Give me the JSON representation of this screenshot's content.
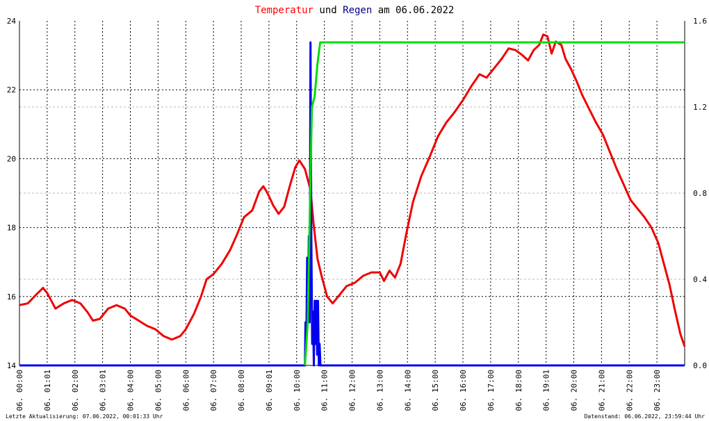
{
  "title": {
    "part1": "Temperatur",
    "part2": " und ",
    "part3": "Regen",
    "part4": " am 06.06.2022",
    "color_temp": "#ff0000",
    "color_rain": "#000080",
    "color_text": "#000000"
  },
  "footer": {
    "left": "Letzte Aktualisierung: 07.06.2022, 00:01:33 Uhr",
    "right": "Datenstand: 06.06.2022, 23:59:44 Uhr"
  },
  "chart_data": {
    "type": "line",
    "grid": true,
    "x_ticks": [
      "06. 00:00",
      "06. 01:01",
      "06. 02:00",
      "06. 03:01",
      "06. 04:00",
      "06. 05:00",
      "06. 06:00",
      "06. 07:00",
      "06. 08:00",
      "06. 09:01",
      "06. 10:00",
      "06. 11:00",
      "06. 12:00",
      "06. 13:00",
      "06. 14:00",
      "06. 15:00",
      "06. 16:00",
      "06. 17:00",
      "06. 18:00",
      "06. 19:01",
      "06. 20:00",
      "06. 21:00",
      "06. 22:00",
      "06. 23:00"
    ],
    "y_left": {
      "range": [
        14,
        24
      ],
      "ticks": [
        "14",
        "16",
        "18",
        "20",
        "22",
        "24"
      ]
    },
    "y_right": {
      "range": [
        0.0,
        1.6
      ],
      "ticks": [
        "0.0",
        "0.4",
        "0.8",
        "1.2",
        "1.6"
      ]
    },
    "series": [
      {
        "color": "#ee0000",
        "axis": "left",
        "points": [
          [
            0,
            15.75
          ],
          [
            0.3,
            15.8
          ],
          [
            0.6,
            16.05
          ],
          [
            0.85,
            16.25
          ],
          [
            1.0,
            16.1
          ],
          [
            1.3,
            15.65
          ],
          [
            1.6,
            15.8
          ],
          [
            1.9,
            15.9
          ],
          [
            2.2,
            15.8
          ],
          [
            2.45,
            15.55
          ],
          [
            2.65,
            15.3
          ],
          [
            2.9,
            15.35
          ],
          [
            3.2,
            15.65
          ],
          [
            3.5,
            15.75
          ],
          [
            3.8,
            15.65
          ],
          [
            4.0,
            15.45
          ],
          [
            4.3,
            15.3
          ],
          [
            4.6,
            15.15
          ],
          [
            4.9,
            15.05
          ],
          [
            5.2,
            14.85
          ],
          [
            5.5,
            14.75
          ],
          [
            5.8,
            14.85
          ],
          [
            6.0,
            15.05
          ],
          [
            6.3,
            15.5
          ],
          [
            6.55,
            16.0
          ],
          [
            6.75,
            16.5
          ],
          [
            7.0,
            16.65
          ],
          [
            7.3,
            16.95
          ],
          [
            7.6,
            17.35
          ],
          [
            7.85,
            17.8
          ],
          [
            8.1,
            18.3
          ],
          [
            8.4,
            18.5
          ],
          [
            8.65,
            19.05
          ],
          [
            8.8,
            19.2
          ],
          [
            8.95,
            19.0
          ],
          [
            9.15,
            18.65
          ],
          [
            9.35,
            18.4
          ],
          [
            9.55,
            18.6
          ],
          [
            9.75,
            19.2
          ],
          [
            9.95,
            19.75
          ],
          [
            10.1,
            19.95
          ],
          [
            10.3,
            19.7
          ],
          [
            10.5,
            19.1
          ],
          [
            10.6,
            18.2
          ],
          [
            10.75,
            17.1
          ],
          [
            10.9,
            16.6
          ],
          [
            11.1,
            16.0
          ],
          [
            11.3,
            15.8
          ],
          [
            11.55,
            16.05
          ],
          [
            11.8,
            16.3
          ],
          [
            12.1,
            16.4
          ],
          [
            12.4,
            16.6
          ],
          [
            12.7,
            16.7
          ],
          [
            13.0,
            16.7
          ],
          [
            13.15,
            16.45
          ],
          [
            13.35,
            16.75
          ],
          [
            13.55,
            16.55
          ],
          [
            13.75,
            16.95
          ],
          [
            13.95,
            17.8
          ],
          [
            14.2,
            18.75
          ],
          [
            14.5,
            19.5
          ],
          [
            14.8,
            20.05
          ],
          [
            15.1,
            20.65
          ],
          [
            15.4,
            21.05
          ],
          [
            15.7,
            21.35
          ],
          [
            16.0,
            21.7
          ],
          [
            16.3,
            22.1
          ],
          [
            16.6,
            22.45
          ],
          [
            16.85,
            22.35
          ],
          [
            17.1,
            22.6
          ],
          [
            17.4,
            22.9
          ],
          [
            17.65,
            23.2
          ],
          [
            17.9,
            23.15
          ],
          [
            18.15,
            23.0
          ],
          [
            18.35,
            22.85
          ],
          [
            18.55,
            23.15
          ],
          [
            18.75,
            23.3
          ],
          [
            18.9,
            23.6
          ],
          [
            19.05,
            23.55
          ],
          [
            19.2,
            23.05
          ],
          [
            19.35,
            23.4
          ],
          [
            19.55,
            23.3
          ],
          [
            19.7,
            22.9
          ],
          [
            19.9,
            22.6
          ],
          [
            20.1,
            22.25
          ],
          [
            20.3,
            21.85
          ],
          [
            20.55,
            21.45
          ],
          [
            20.8,
            21.05
          ],
          [
            21.05,
            20.7
          ],
          [
            21.3,
            20.2
          ],
          [
            21.55,
            19.7
          ],
          [
            21.8,
            19.25
          ],
          [
            22.05,
            18.8
          ],
          [
            22.3,
            18.55
          ],
          [
            22.55,
            18.3
          ],
          [
            22.8,
            18.0
          ],
          [
            23.05,
            17.55
          ],
          [
            23.25,
            16.95
          ],
          [
            23.45,
            16.35
          ],
          [
            23.65,
            15.6
          ],
          [
            23.85,
            14.9
          ],
          [
            24.0,
            14.55
          ]
        ]
      },
      {
        "color": "#0000ee",
        "axis": "right",
        "points": [
          [
            0,
            0
          ],
          [
            10.25,
            0
          ],
          [
            10.3,
            0.0
          ],
          [
            10.32,
            0.2
          ],
          [
            10.35,
            0.1
          ],
          [
            10.38,
            0.5
          ],
          [
            10.41,
            0.3
          ],
          [
            10.44,
            0.6
          ],
          [
            10.47,
            0.2
          ],
          [
            10.5,
            1.5
          ],
          [
            10.53,
            0.6
          ],
          [
            10.56,
            0.1
          ],
          [
            10.59,
            0.25
          ],
          [
            10.62,
            0.0
          ],
          [
            10.65,
            0.3
          ],
          [
            10.68,
            0.1
          ],
          [
            10.71,
            0.3
          ],
          [
            10.74,
            0.05
          ],
          [
            10.77,
            0.3
          ],
          [
            10.8,
            0.0
          ],
          [
            10.83,
            0.1
          ],
          [
            10.86,
            0.0
          ],
          [
            24,
            0
          ]
        ]
      },
      {
        "color": "#00dd00",
        "axis": "right",
        "points": [
          [
            10.3,
            0.0
          ],
          [
            10.4,
            0.2
          ],
          [
            10.55,
            1.2
          ],
          [
            10.65,
            1.25
          ],
          [
            10.75,
            1.4
          ],
          [
            10.85,
            1.5
          ],
          [
            24.0,
            1.5
          ]
        ]
      }
    ]
  }
}
